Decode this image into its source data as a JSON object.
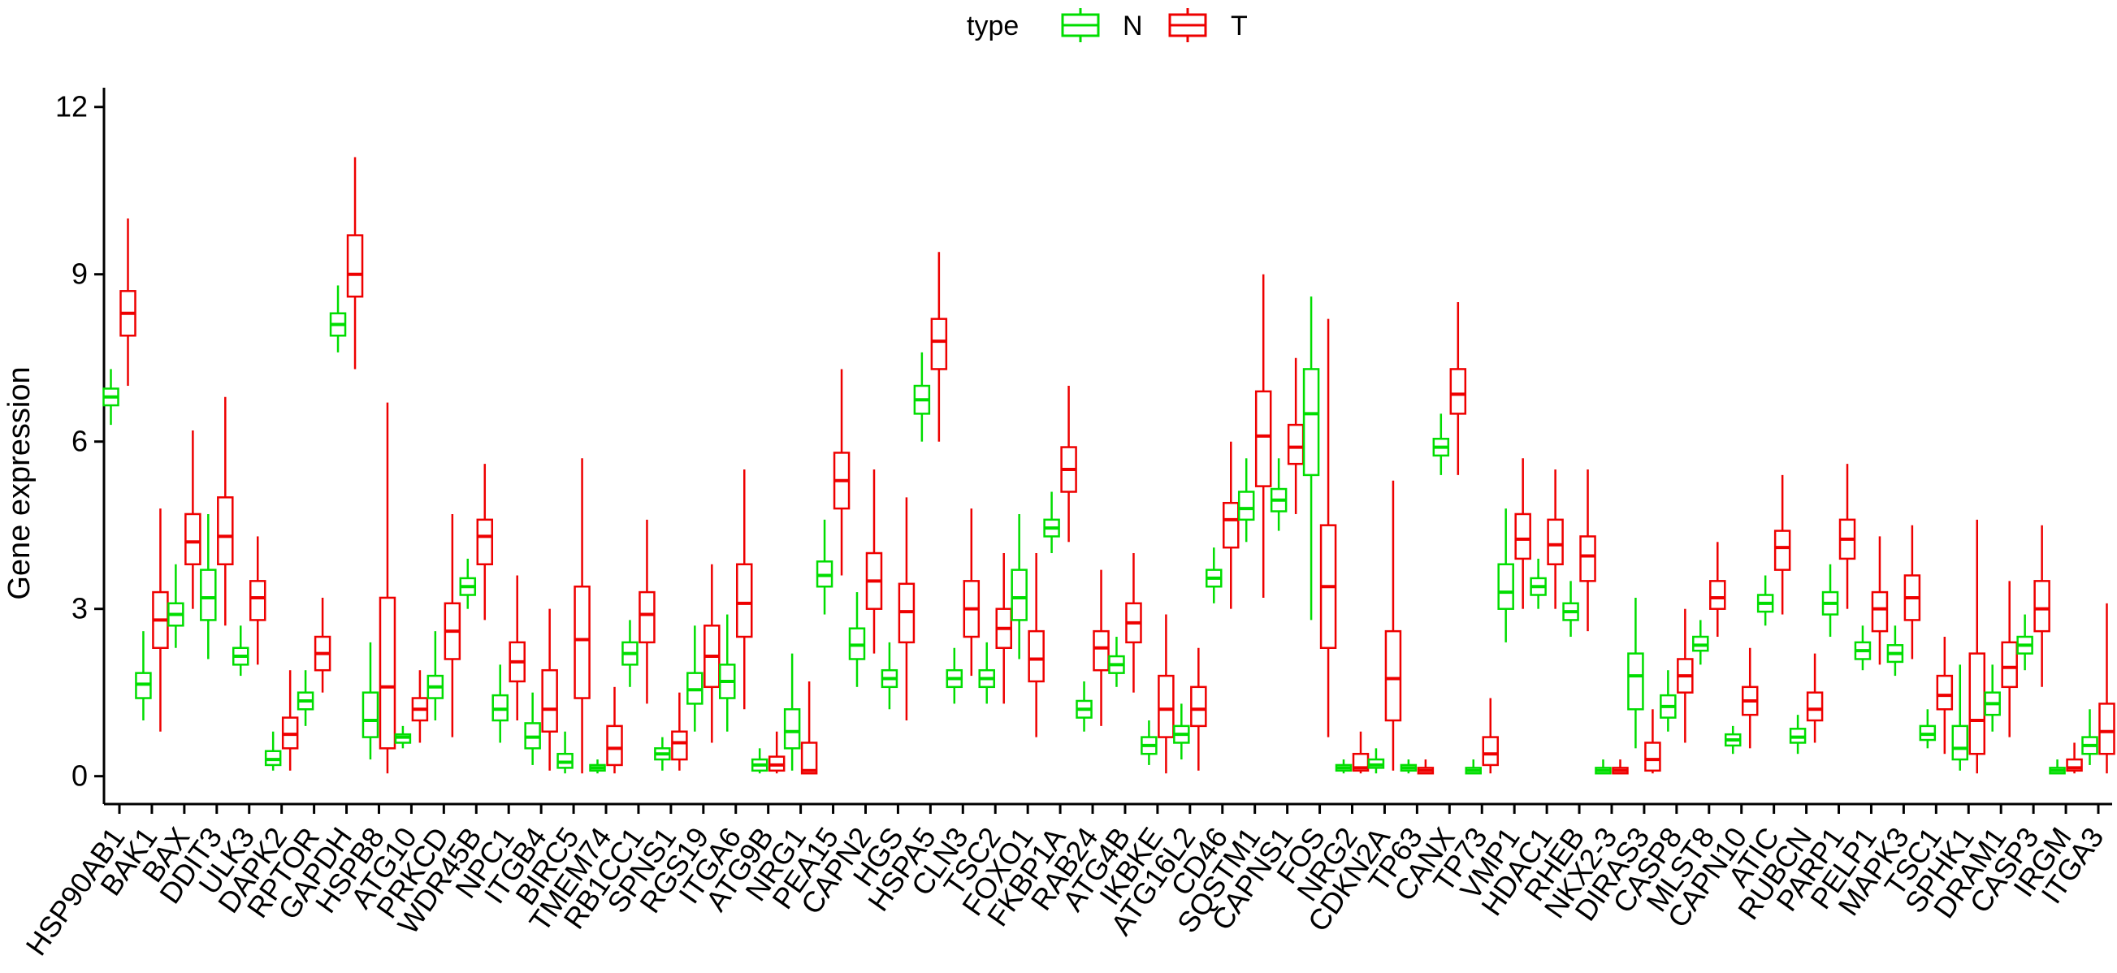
{
  "colors": {
    "N": "#00dd00",
    "T": "#ee0000",
    "axis": "#000000"
  },
  "chart_data": {
    "type": "box",
    "title": "",
    "xlabel": "",
    "ylabel": "Gene expression",
    "ylim": [
      -0.5,
      12.2
    ],
    "yticks": [
      0,
      3,
      6,
      9,
      12
    ],
    "legend": {
      "title": "type",
      "entries": [
        "N",
        "T"
      ],
      "position": "top"
    },
    "categories": [
      "HSP90AB1",
      "BAK1",
      "BAX",
      "DDIT3",
      "ULK3",
      "DAPK2",
      "RPTOR",
      "GAPDH",
      "HSPB8",
      "ATG10",
      "PRKCD",
      "WDR45B",
      "NPC1",
      "ITGB4",
      "BIRC5",
      "TMEM74",
      "RB1CC1",
      "SPNS1",
      "RGS19",
      "ITGA6",
      "ATG9B",
      "NRG1",
      "PEA15",
      "CAPN2",
      "HGS",
      "HSPA5",
      "CLN3",
      "TSC2",
      "FOXO1",
      "FKBP1A",
      "RAB24",
      "ATG4B",
      "IKBKE",
      "ATG16L2",
      "CD46",
      "SQSTM1",
      "CAPNS1",
      "FOS",
      "NRG2",
      "CDKN2A",
      "TP63",
      "CANX",
      "TP73",
      "VMP1",
      "HDAC1",
      "RHEB",
      "NKX2-3",
      "DIRAS3",
      "CASP8",
      "MLST8",
      "CAPN10",
      "ATIC",
      "RUBCN",
      "PARP1",
      "PELP1",
      "MAPK3",
      "TSC1",
      "SPHK1",
      "DRAM1",
      "CASP3",
      "IRGM",
      "ITGA3"
    ],
    "series": [
      {
        "name": "N",
        "boxes": [
          [
            6.3,
            6.65,
            6.8,
            6.95,
            7.3
          ],
          [
            1.0,
            1.4,
            1.65,
            1.85,
            2.6
          ],
          [
            2.3,
            2.7,
            2.9,
            3.1,
            3.8
          ],
          [
            2.1,
            2.8,
            3.2,
            3.7,
            4.7
          ],
          [
            1.8,
            2.0,
            2.15,
            2.3,
            2.7
          ],
          [
            0.1,
            0.2,
            0.3,
            0.45,
            0.8
          ],
          [
            0.9,
            1.2,
            1.35,
            1.5,
            1.9
          ],
          [
            7.6,
            7.9,
            8.1,
            8.3,
            8.8
          ],
          [
            0.3,
            0.7,
            1.0,
            1.5,
            2.4
          ],
          [
            0.5,
            0.6,
            0.7,
            0.75,
            0.9
          ],
          [
            1.0,
            1.4,
            1.6,
            1.8,
            2.6
          ],
          [
            3.0,
            3.25,
            3.4,
            3.55,
            3.9
          ],
          [
            0.6,
            1.0,
            1.2,
            1.45,
            2.0
          ],
          [
            0.2,
            0.5,
            0.7,
            0.95,
            1.5
          ],
          [
            0.05,
            0.15,
            0.25,
            0.4,
            0.8
          ],
          [
            0.05,
            0.1,
            0.15,
            0.2,
            0.3
          ],
          [
            1.6,
            2.0,
            2.2,
            2.4,
            2.8
          ],
          [
            0.1,
            0.3,
            0.4,
            0.5,
            0.7
          ],
          [
            0.8,
            1.3,
            1.55,
            1.85,
            2.7
          ],
          [
            0.8,
            1.4,
            1.7,
            2.0,
            2.9
          ],
          [
            0.05,
            0.1,
            0.2,
            0.3,
            0.5
          ],
          [
            0.1,
            0.5,
            0.8,
            1.2,
            2.2
          ],
          [
            2.9,
            3.4,
            3.6,
            3.85,
            4.6
          ],
          [
            1.6,
            2.1,
            2.35,
            2.65,
            3.3
          ],
          [
            1.2,
            1.6,
            1.75,
            1.9,
            2.4
          ],
          [
            6.0,
            6.5,
            6.75,
            7.0,
            7.6
          ],
          [
            1.3,
            1.6,
            1.75,
            1.9,
            2.3
          ],
          [
            1.3,
            1.6,
            1.75,
            1.9,
            2.4
          ],
          [
            2.1,
            2.8,
            3.2,
            3.7,
            4.7
          ],
          [
            4.0,
            4.3,
            4.45,
            4.6,
            5.1
          ],
          [
            0.8,
            1.05,
            1.2,
            1.35,
            1.7
          ],
          [
            1.6,
            1.85,
            2.0,
            2.15,
            2.5
          ],
          [
            0.2,
            0.4,
            0.55,
            0.7,
            1.0
          ],
          [
            0.3,
            0.6,
            0.75,
            0.9,
            1.3
          ],
          [
            3.1,
            3.4,
            3.55,
            3.7,
            4.1
          ],
          [
            4.2,
            4.6,
            4.8,
            5.1,
            5.7
          ],
          [
            4.4,
            4.75,
            4.95,
            5.15,
            5.7
          ],
          [
            2.8,
            5.4,
            6.5,
            7.3,
            8.6
          ],
          [
            0.05,
            0.1,
            0.15,
            0.2,
            0.3
          ],
          [
            0.05,
            0.15,
            0.2,
            0.3,
            0.5
          ],
          [
            0.05,
            0.1,
            0.15,
            0.2,
            0.3
          ],
          [
            5.4,
            5.75,
            5.9,
            6.05,
            6.5
          ],
          [
            0.05,
            0.05,
            0.1,
            0.15,
            0.3
          ],
          [
            2.4,
            3.0,
            3.3,
            3.8,
            4.8
          ],
          [
            3.0,
            3.25,
            3.4,
            3.55,
            3.9
          ],
          [
            2.5,
            2.8,
            2.95,
            3.1,
            3.5
          ],
          [
            0.05,
            0.05,
            0.1,
            0.15,
            0.3
          ],
          [
            0.5,
            1.2,
            1.8,
            2.2,
            3.2
          ],
          [
            0.8,
            1.05,
            1.25,
            1.45,
            1.9
          ],
          [
            2.0,
            2.25,
            2.35,
            2.5,
            2.8
          ],
          [
            0.4,
            0.55,
            0.65,
            0.75,
            0.9
          ],
          [
            2.7,
            2.95,
            3.1,
            3.25,
            3.6
          ],
          [
            0.4,
            0.6,
            0.7,
            0.85,
            1.1
          ],
          [
            2.5,
            2.9,
            3.1,
            3.3,
            3.8
          ],
          [
            1.9,
            2.1,
            2.25,
            2.4,
            2.7
          ],
          [
            1.8,
            2.05,
            2.2,
            2.35,
            2.7
          ],
          [
            0.5,
            0.65,
            0.75,
            0.9,
            1.2
          ],
          [
            0.1,
            0.3,
            0.5,
            0.9,
            2.0
          ],
          [
            0.8,
            1.1,
            1.3,
            1.5,
            2.0
          ],
          [
            1.9,
            2.2,
            2.35,
            2.5,
            2.9
          ],
          [
            0.05,
            0.05,
            0.1,
            0.15,
            0.3
          ],
          [
            0.2,
            0.4,
            0.55,
            0.7,
            1.2
          ]
        ]
      },
      {
        "name": "T",
        "boxes": [
          [
            7.0,
            7.9,
            8.3,
            8.7,
            10.0
          ],
          [
            0.8,
            2.3,
            2.8,
            3.3,
            4.8
          ],
          [
            3.0,
            3.8,
            4.2,
            4.7,
            6.2
          ],
          [
            2.7,
            3.8,
            4.3,
            5.0,
            6.8
          ],
          [
            2.0,
            2.8,
            3.2,
            3.5,
            4.3
          ],
          [
            0.1,
            0.5,
            0.75,
            1.05,
            1.9
          ],
          [
            1.5,
            1.9,
            2.2,
            2.5,
            3.2
          ],
          [
            7.3,
            8.6,
            9.0,
            9.7,
            11.1
          ],
          [
            0.05,
            0.5,
            1.6,
            3.2,
            6.7
          ],
          [
            0.6,
            1.0,
            1.2,
            1.4,
            1.9
          ],
          [
            0.7,
            2.1,
            2.6,
            3.1,
            4.7
          ],
          [
            2.8,
            3.8,
            4.3,
            4.6,
            5.6
          ],
          [
            1.0,
            1.7,
            2.05,
            2.4,
            3.6
          ],
          [
            0.1,
            0.8,
            1.2,
            1.9,
            3.0
          ],
          [
            0.05,
            1.4,
            2.45,
            3.4,
            5.7
          ],
          [
            0.05,
            0.2,
            0.5,
            0.9,
            1.6
          ],
          [
            1.3,
            2.4,
            2.9,
            3.3,
            4.6
          ],
          [
            0.1,
            0.3,
            0.6,
            0.8,
            1.5
          ],
          [
            0.6,
            1.6,
            2.15,
            2.7,
            3.8
          ],
          [
            1.2,
            2.5,
            3.1,
            3.8,
            5.5
          ],
          [
            0.05,
            0.1,
            0.2,
            0.35,
            0.8
          ],
          [
            0.05,
            0.05,
            0.1,
            0.6,
            1.7
          ],
          [
            3.6,
            4.8,
            5.3,
            5.8,
            7.3
          ],
          [
            2.2,
            3.0,
            3.5,
            4.0,
            5.5
          ],
          [
            1.0,
            2.4,
            2.95,
            3.45,
            5.0
          ],
          [
            6.0,
            7.3,
            7.8,
            8.2,
            9.4
          ],
          [
            1.8,
            2.5,
            3.0,
            3.5,
            4.8
          ],
          [
            1.3,
            2.3,
            2.65,
            3.0,
            4.0
          ],
          [
            0.7,
            1.7,
            2.1,
            2.6,
            4.0
          ],
          [
            4.2,
            5.1,
            5.5,
            5.9,
            7.0
          ],
          [
            0.9,
            1.9,
            2.3,
            2.6,
            3.7
          ],
          [
            1.5,
            2.4,
            2.75,
            3.1,
            4.0
          ],
          [
            0.05,
            0.7,
            1.2,
            1.8,
            2.9
          ],
          [
            0.1,
            0.9,
            1.2,
            1.6,
            2.3
          ],
          [
            3.0,
            4.1,
            4.6,
            4.9,
            6.0
          ],
          [
            3.2,
            5.2,
            6.1,
            6.9,
            9.0
          ],
          [
            4.7,
            5.6,
            5.9,
            6.3,
            7.5
          ],
          [
            0.7,
            2.3,
            3.4,
            4.5,
            8.2
          ],
          [
            0.05,
            0.1,
            0.15,
            0.4,
            0.8
          ],
          [
            0.1,
            1.0,
            1.75,
            2.6,
            5.3
          ],
          [
            0.05,
            0.05,
            0.1,
            0.15,
            0.3
          ],
          [
            5.4,
            6.5,
            6.85,
            7.3,
            8.5
          ],
          [
            0.05,
            0.2,
            0.4,
            0.7,
            1.4
          ],
          [
            3.0,
            3.9,
            4.25,
            4.7,
            5.7
          ],
          [
            3.0,
            3.8,
            4.15,
            4.6,
            5.5
          ],
          [
            2.6,
            3.5,
            3.95,
            4.3,
            5.5
          ],
          [
            0.05,
            0.05,
            0.1,
            0.15,
            0.3
          ],
          [
            0.05,
            0.1,
            0.3,
            0.6,
            1.2
          ],
          [
            0.6,
            1.5,
            1.8,
            2.1,
            3.0
          ],
          [
            2.5,
            3.0,
            3.2,
            3.5,
            4.2
          ],
          [
            0.5,
            1.1,
            1.35,
            1.6,
            2.3
          ],
          [
            2.9,
            3.7,
            4.1,
            4.4,
            5.4
          ],
          [
            0.6,
            1.0,
            1.2,
            1.5,
            2.2
          ],
          [
            3.0,
            3.9,
            4.25,
            4.6,
            5.6
          ],
          [
            2.0,
            2.6,
            3.0,
            3.3,
            4.3
          ],
          [
            2.1,
            2.8,
            3.2,
            3.6,
            4.5
          ],
          [
            0.4,
            1.2,
            1.45,
            1.8,
            2.5
          ],
          [
            0.05,
            0.4,
            1.0,
            2.2,
            4.6
          ],
          [
            0.7,
            1.6,
            1.95,
            2.4,
            3.5
          ],
          [
            1.6,
            2.6,
            3.0,
            3.5,
            4.5
          ],
          [
            0.05,
            0.1,
            0.15,
            0.3,
            0.6
          ],
          [
            0.05,
            0.4,
            0.8,
            1.3,
            3.1
          ]
        ]
      }
    ]
  }
}
